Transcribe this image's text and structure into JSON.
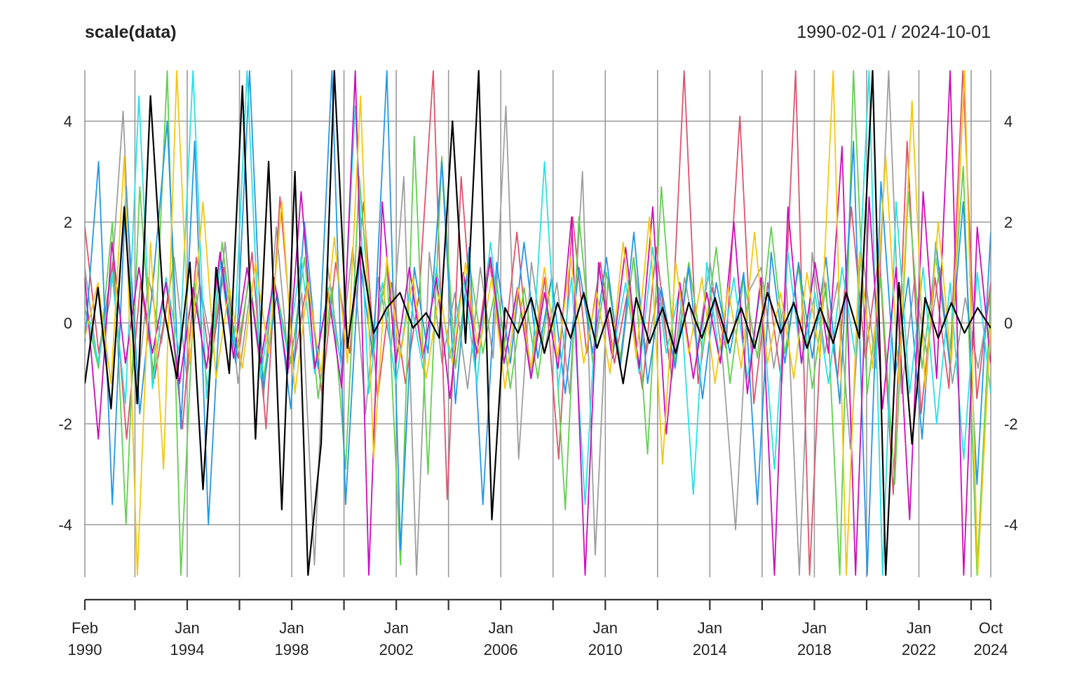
{
  "chart_data": {
    "type": "line",
    "title": "scale(data)",
    "date_range_label": "1990-02-01 / 2024-10-01",
    "start": "1990-02-01",
    "end": "2024-10-01",
    "ylim": [
      -5,
      5
    ],
    "y_ticks": [
      -4,
      -2,
      0,
      2,
      4
    ],
    "x_ticks": [
      {
        "date": "1990-02",
        "label": [
          "Feb",
          "1990"
        ]
      },
      {
        "date": "1992-01",
        "label": null
      },
      {
        "date": "1994-01",
        "label": [
          "Jan",
          "1994"
        ]
      },
      {
        "date": "1996-01",
        "label": null
      },
      {
        "date": "1998-01",
        "label": [
          "Jan",
          "1998"
        ]
      },
      {
        "date": "2000-01",
        "label": null
      },
      {
        "date": "2002-01",
        "label": [
          "Jan",
          "2002"
        ]
      },
      {
        "date": "2004-01",
        "label": null
      },
      {
        "date": "2006-01",
        "label": [
          "Jan",
          "2006"
        ]
      },
      {
        "date": "2008-01",
        "label": null
      },
      {
        "date": "2010-01",
        "label": [
          "Jan",
          "2010"
        ]
      },
      {
        "date": "2012-01",
        "label": null
      },
      {
        "date": "2014-01",
        "label": [
          "Jan",
          "2014"
        ]
      },
      {
        "date": "2016-01",
        "label": null
      },
      {
        "date": "2018-01",
        "label": [
          "Jan",
          "2018"
        ]
      },
      {
        "date": "2020-01",
        "label": null
      },
      {
        "date": "2022-01",
        "label": [
          "Jan",
          "2022"
        ]
      },
      {
        "date": "2024-01",
        "label": null
      },
      {
        "date": "2024-10",
        "label": [
          "Oct",
          "2024"
        ]
      }
    ],
    "grid": true,
    "legend": "none",
    "series": [
      {
        "color": "#9E9E9E",
        "values": [
          1.1,
          -0.8,
          0.5,
          4.2,
          -1.6,
          0.9,
          -0.4,
          1.3,
          -1.1,
          0.8,
          -0.6,
          1.6,
          -1.2,
          0.7,
          -1.5,
          1.9,
          -0.9,
          0.6,
          -4.8,
          1.2,
          -0.7,
          1.5,
          -1.8,
          0.9,
          -0.5,
          2.9,
          -5,
          1.4,
          -0.8,
          0.6,
          -1.3,
          1.1,
          -0.7,
          4.3,
          -2.7,
          1.2,
          -0.6,
          0.8,
          -1.4,
          3.0,
          -4.6,
          0.9,
          -0.8,
          1.3,
          -0.6,
          0.7,
          -1.1,
          0.9,
          -0.5,
          1.2,
          -0.8,
          -4.1,
          0.6,
          1.1,
          -0.9,
          0.7,
          -5,
          1.4,
          -0.6,
          0.8,
          -2.5,
          1.3,
          -0.9,
          5,
          -1.4,
          0.8,
          -0.6,
          1.1,
          -1.2,
          0.5,
          -0.9,
          0.6
        ]
      },
      {
        "color": "#DF536B",
        "values": [
          1.9,
          -0.6,
          1.2,
          -2.3,
          0.8,
          -1.1,
          0.6,
          -2.1,
          1.3,
          -0.9,
          1.1,
          -0.7,
          1.4,
          -2.1,
          2.5,
          -0.8,
          0.9,
          -1.4,
          1.2,
          -0.6,
          2.4,
          -1.5,
          0.8,
          -1.2,
          0.6,
          5,
          -3.5,
          2.9,
          -0.8,
          1.3,
          -0.7,
          1.8,
          -1.1,
          0.9,
          -2.7,
          2.1,
          -0.6,
          1.2,
          -0.8,
          0.7,
          -1.3,
          1.5,
          -0.9,
          5,
          -1.2,
          0.7,
          -0.5,
          4.1,
          -1.6,
          0.8,
          -1.2,
          5,
          -5,
          0.9,
          -1.1,
          2.3,
          -0.7,
          1.4,
          -3.4,
          3.6,
          -1.8,
          0.9,
          -1.3,
          5,
          -1.5,
          0.8
        ]
      },
      {
        "color": "#61D04F",
        "values": [
          0.3,
          -0.9,
          2.0,
          -4.0,
          2.7,
          -1.2,
          5,
          -5,
          0.8,
          -1.4,
          1.6,
          -0.7,
          0.9,
          -1.1,
          0.6,
          -0.8,
          1.3,
          -1.5,
          0.7,
          -2.9,
          2.9,
          -0.6,
          1.1,
          -4.8,
          3.7,
          -3.0,
          3.3,
          -0.9,
          1.2,
          -0.6,
          0.8,
          -1.3,
          0.7,
          -1.1,
          0.9,
          -3.7,
          2.1,
          -0.8,
          1.0,
          -0.7,
          1.3,
          -2.6,
          2.7,
          -0.8,
          1.2,
          -0.6,
          1.5,
          -1.2,
          0.9,
          -0.7,
          1.9,
          -0.6,
          1.1,
          -1.3,
          0.8,
          -5,
          5,
          -1.4,
          0.9,
          -3.2,
          2.6,
          -0.9,
          1.3,
          -0.7,
          3.1,
          -5,
          0.6
        ]
      },
      {
        "color": "#2297E6",
        "values": [
          -0.4,
          3.2,
          -3.6,
          2.7,
          -1.8,
          0.9,
          4.0,
          -2.1,
          3.6,
          -4.0,
          1.2,
          -0.8,
          5,
          -1.3,
          0.6,
          -1.7,
          2.0,
          -0.9,
          5,
          -3.6,
          1.3,
          -0.7,
          5,
          -4.5,
          1.1,
          -0.6,
          3.2,
          -1.6,
          1.5,
          -3.6,
          1.2,
          -0.8,
          1.6,
          -0.7,
          0.9,
          -1.4,
          1.1,
          -0.6,
          1.3,
          -0.9,
          1.8,
          -1.2,
          0.7,
          -0.9,
          1.1,
          -1.5,
          0.8,
          -0.6,
          1.0,
          -3.6,
          1.4,
          -0.8,
          1.2,
          -0.7,
          1.3,
          -1.6,
          3.6,
          -5,
          2.8,
          -1.1,
          0.9,
          -2.3,
          1.6,
          -0.8,
          2.4,
          -3.2,
          1.8
        ]
      },
      {
        "color": "#28E2E5",
        "values": [
          0.5,
          -0.8,
          1.0,
          -1.6,
          4.5,
          -1.3,
          0.9,
          -0.6,
          5,
          -1.5,
          1.2,
          -0.7,
          5,
          -1.1,
          0.8,
          -0.6,
          1.3,
          -1.0,
          0.7,
          -0.9,
          4.3,
          -1.4,
          0.8,
          -1.2,
          0.6,
          -0.9,
          1.1,
          -0.7,
          0.9,
          -1.2,
          1.6,
          -0.8,
          0.7,
          -1.1,
          3.2,
          -1.3,
          0.9,
          -3.6,
          1.2,
          -0.7,
          0.8,
          -1.0,
          1.5,
          -0.6,
          0.7,
          -3.4,
          1.2,
          -0.8,
          0.9,
          -1.1,
          0.7,
          -2.9,
          1.4,
          -0.8,
          0.6,
          -1.2,
          1.1,
          -0.7,
          5,
          -5,
          2.4,
          -1.4,
          1.1,
          -2.0,
          0.8,
          -2.7,
          1.0,
          -1.4
        ]
      },
      {
        "color": "#CD0BBC",
        "values": [
          0.9,
          -2.3,
          1.6,
          -0.8,
          1.1,
          -0.6,
          0.8,
          -1.2,
          0.7,
          -0.9,
          1.4,
          -0.7,
          1.1,
          -0.8,
          0.9,
          -1.0,
          2.6,
          -0.9,
          0.6,
          -1.3,
          5,
          -5,
          2.4,
          -0.8,
          1.1,
          -0.7,
          0.9,
          -1.5,
          1.0,
          -0.6,
          1.3,
          -0.8,
          0.7,
          -1.1,
          0.6,
          -0.9,
          2.1,
          -5,
          1.2,
          -0.7,
          1.5,
          -0.9,
          2.3,
          -2.2,
          0.8,
          -1.1,
          0.6,
          -0.8,
          2.0,
          -1.4,
          0.9,
          -5,
          2.3,
          -0.8,
          1.2,
          -0.6,
          3.5,
          -5,
          2.5,
          -1.7,
          1.1,
          -3.9,
          2.6,
          -1.1,
          5,
          -5,
          1.9,
          -0.8
        ]
      },
      {
        "color": "#F5C710",
        "values": [
          -0.3,
          0.8,
          -1.2,
          3.3,
          -5,
          1.6,
          -2.9,
          5,
          -0.8,
          2.4,
          -1.1,
          0.7,
          -0.9,
          1.2,
          -0.6,
          2.4,
          -1.4,
          0.8,
          -1.0,
          1.7,
          -0.8,
          4.5,
          -2.7,
          1.3,
          -0.7,
          0.9,
          -1.1,
          0.6,
          -0.8,
          1.2,
          -0.6,
          0.9,
          -1.3,
          0.7,
          -0.9,
          1.1,
          -0.7,
          1.3,
          -0.8,
          0.6,
          -1.0,
          1.6,
          -0.7,
          2.1,
          -2.8,
          1.2,
          -0.6,
          0.9,
          -1.2,
          0.7,
          -0.9,
          1.8,
          -0.8,
          0.6,
          -1.1,
          1.0,
          -0.7,
          5,
          -5,
          1.4,
          -0.9,
          3.3,
          -1.2,
          4.4,
          -1.3,
          2.0,
          -0.8,
          5,
          -5,
          0.0
        ]
      },
      {
        "color": "#000000",
        "values": [
          -1.2,
          0.7,
          -1.7,
          2.3,
          -1.6,
          4.5,
          0.3,
          -1.1,
          1.2,
          -3.3,
          1.1,
          -1.0,
          4.7,
          -2.3,
          3.2,
          -3.7,
          3.0,
          -5,
          -2.4,
          5,
          -0.5,
          1.5,
          -0.2,
          0.3,
          0.6,
          -0.1,
          0.2,
          -0.3,
          4.0,
          -0.4,
          5,
          -3.9,
          0.3,
          -0.2,
          0.5,
          -0.6,
          0.4,
          -0.3,
          0.6,
          -0.5,
          0.3,
          -1.2,
          0.5,
          -0.4,
          0.3,
          -0.6,
          0.4,
          -0.3,
          0.5,
          -0.4,
          0.3,
          -0.5,
          0.6,
          -0.2,
          0.4,
          -0.5,
          0.3,
          -0.4,
          0.6,
          -0.3,
          5,
          -5,
          0.8,
          -2.4,
          0.5,
          -0.3,
          0.4,
          -0.2,
          0.3,
          -0.1
        ]
      }
    ]
  }
}
